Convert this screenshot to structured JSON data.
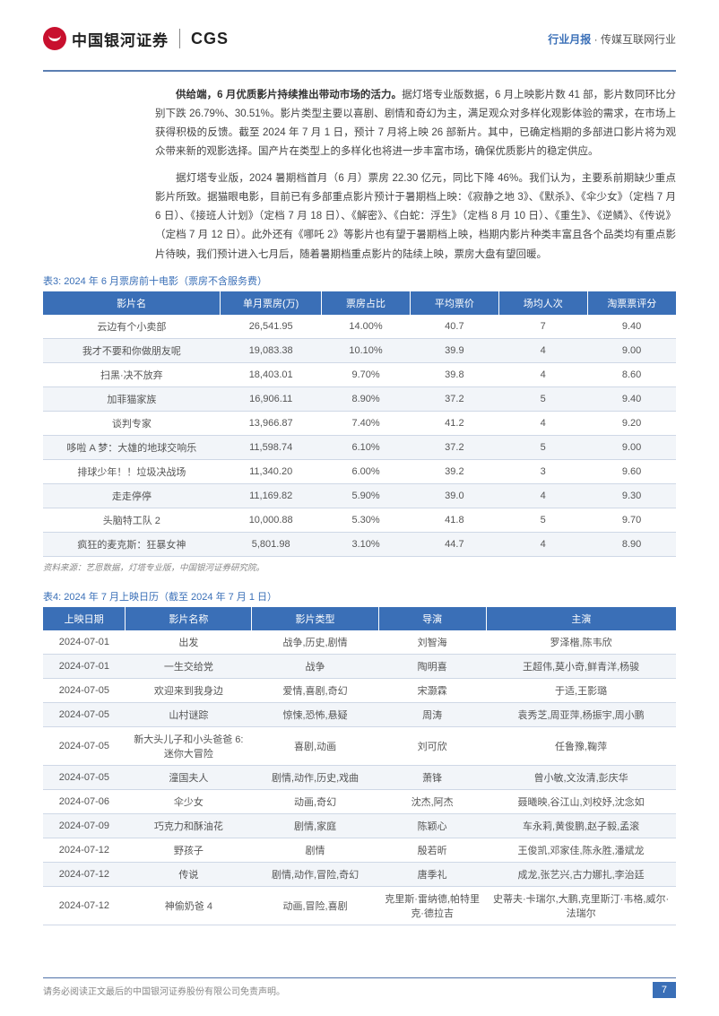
{
  "header": {
    "logo_cn": "中国银河证券",
    "logo_en": "CGS",
    "right_accent": "行业月报",
    "right_sep": "·",
    "right_rest": "传媒互联网行业"
  },
  "paragraphs": {
    "p1_bold": "供给端，6 月优质影片持续推出带动市场的活力。",
    "p1_rest": "据灯塔专业版数据，6 月上映影片数 41 部，影片数同环比分别下跌 26.79%、30.51%。影片类型主要以喜剧、剧情和奇幻为主，满足观众对多样化观影体验的需求，在市场上获得积极的反馈。截至 2024 年 7 月 1 日，预计 7 月将上映 26 部新片。其中，已确定档期的多部进口影片将为观众带来新的观影选择。国产片在类型上的多样化也将进一步丰富市场，确保优质影片的稳定供应。",
    "p2": "据灯塔专业版，2024 暑期档首月（6 月）票房 22.30 亿元，同比下降 46%。我们认为，主要系前期缺少重点影片所致。据猫眼电影，目前已有多部重点影片预计于暑期档上映：《寂静之地 3》、《默杀》、《伞少女》（定档 7 月 6 日）、《接班人计划》（定档 7 月 18 日）、《解密》、《白蛇：浮生》（定档 8 月 10 日）、《重生》、《逆鳞》、《传说》（定档 7 月 12 日）。此外还有《哪吒 2》等影片也有望于暑期档上映，档期内影片种类丰富且各个品类均有重点影片待映，我们预计进入七月后，随着暑期档重点影片的陆续上映，票房大盘有望回暖。"
  },
  "table3": {
    "caption": "表3: 2024 年 6 月票房前十电影（票房不含服务费）",
    "columns": [
      "影片名",
      "单月票房(万)",
      "票房占比",
      "平均票价",
      "场均人次",
      "淘票票评分"
    ],
    "rows": [
      [
        "云边有个小卖部",
        "26,541.95",
        "14.00%",
        "40.7",
        "7",
        "9.40"
      ],
      [
        "我才不要和你做朋友呢",
        "19,083.38",
        "10.10%",
        "39.9",
        "4",
        "9.00"
      ],
      [
        "扫黑·决不放弃",
        "18,403.01",
        "9.70%",
        "39.8",
        "4",
        "8.60"
      ],
      [
        "加菲猫家族",
        "16,906.11",
        "8.90%",
        "37.2",
        "5",
        "9.40"
      ],
      [
        "谈判专家",
        "13,966.87",
        "7.40%",
        "41.2",
        "4",
        "9.20"
      ],
      [
        "哆啦 A 梦：大雄的地球交响乐",
        "11,598.74",
        "6.10%",
        "37.2",
        "5",
        "9.00"
      ],
      [
        "排球少年！！垃圾决战场",
        "11,340.20",
        "6.00%",
        "39.2",
        "3",
        "9.60"
      ],
      [
        "走走停停",
        "11,169.82",
        "5.90%",
        "39.0",
        "4",
        "9.30"
      ],
      [
        "头脑特工队 2",
        "10,000.88",
        "5.30%",
        "41.8",
        "5",
        "9.70"
      ],
      [
        "疯狂的麦克斯：狂暴女神",
        "5,801.98",
        "3.10%",
        "44.7",
        "4",
        "8.90"
      ]
    ],
    "source": "资料来源：艺恩数据，灯塔专业版，中国银河证券研究院。"
  },
  "table4": {
    "caption": "表4: 2024 年 7 月上映日历（截至 2024 年 7 月 1 日）",
    "columns": [
      "上映日期",
      "影片名称",
      "影片类型",
      "导演",
      "主演"
    ],
    "rows": [
      [
        "2024-07-01",
        "出发",
        "战争,历史,剧情",
        "刘智海",
        "罗泽楷,陈韦欣"
      ],
      [
        "2024-07-01",
        "一生交给党",
        "战争",
        "陶明喜",
        "王超伟,莫小奇,鲜青洋,杨骏"
      ],
      [
        "2024-07-05",
        "欢迎来到我身边",
        "爱情,喜剧,奇幻",
        "宋灏霖",
        "于适,王影璐"
      ],
      [
        "2024-07-05",
        "山村谜踪",
        "惊悚,恐怖,悬疑",
        "周涛",
        "袁秀芝,周亚萍,杨振宇,周小鹏"
      ],
      [
        "2024-07-05",
        "新大头儿子和小头爸爸 6:迷你大冒险",
        "喜剧,动画",
        "刘可欣",
        "任鲁豫,鞠萍"
      ],
      [
        "2024-07-05",
        "潼国夫人",
        "剧情,动作,历史,戏曲",
        "萧锋",
        "曾小敏,文汝清,彭庆华"
      ],
      [
        "2024-07-06",
        "伞少女",
        "动画,奇幻",
        "沈杰,阿杰",
        "聂曦映,谷江山,刘校妤,沈念如"
      ],
      [
        "2024-07-09",
        "巧克力和酥油花",
        "剧情,家庭",
        "陈颖心",
        "车永莉,黄俊鹏,赵子毅,孟滚"
      ],
      [
        "2024-07-12",
        "野孩子",
        "剧情",
        "殷若昕",
        "王俊凯,邓家佳,陈永胜,潘斌龙"
      ],
      [
        "2024-07-12",
        "传说",
        "剧情,动作,冒险,奇幻",
        "唐季礼",
        "成龙,张艺兴,古力娜扎,李治廷"
      ],
      [
        "2024-07-12",
        "神偷奶爸 4",
        "动画,冒险,喜剧",
        "克里斯·雷纳德,帕特里克·德拉吉",
        "史蒂夫·卡瑞尔,大鹏,克里斯汀·韦格,威尔·法瑞尔"
      ]
    ]
  },
  "footer": {
    "text": "请务必阅读正文最后的中国银河证券股份有限公司免责声明。",
    "page": "7"
  }
}
